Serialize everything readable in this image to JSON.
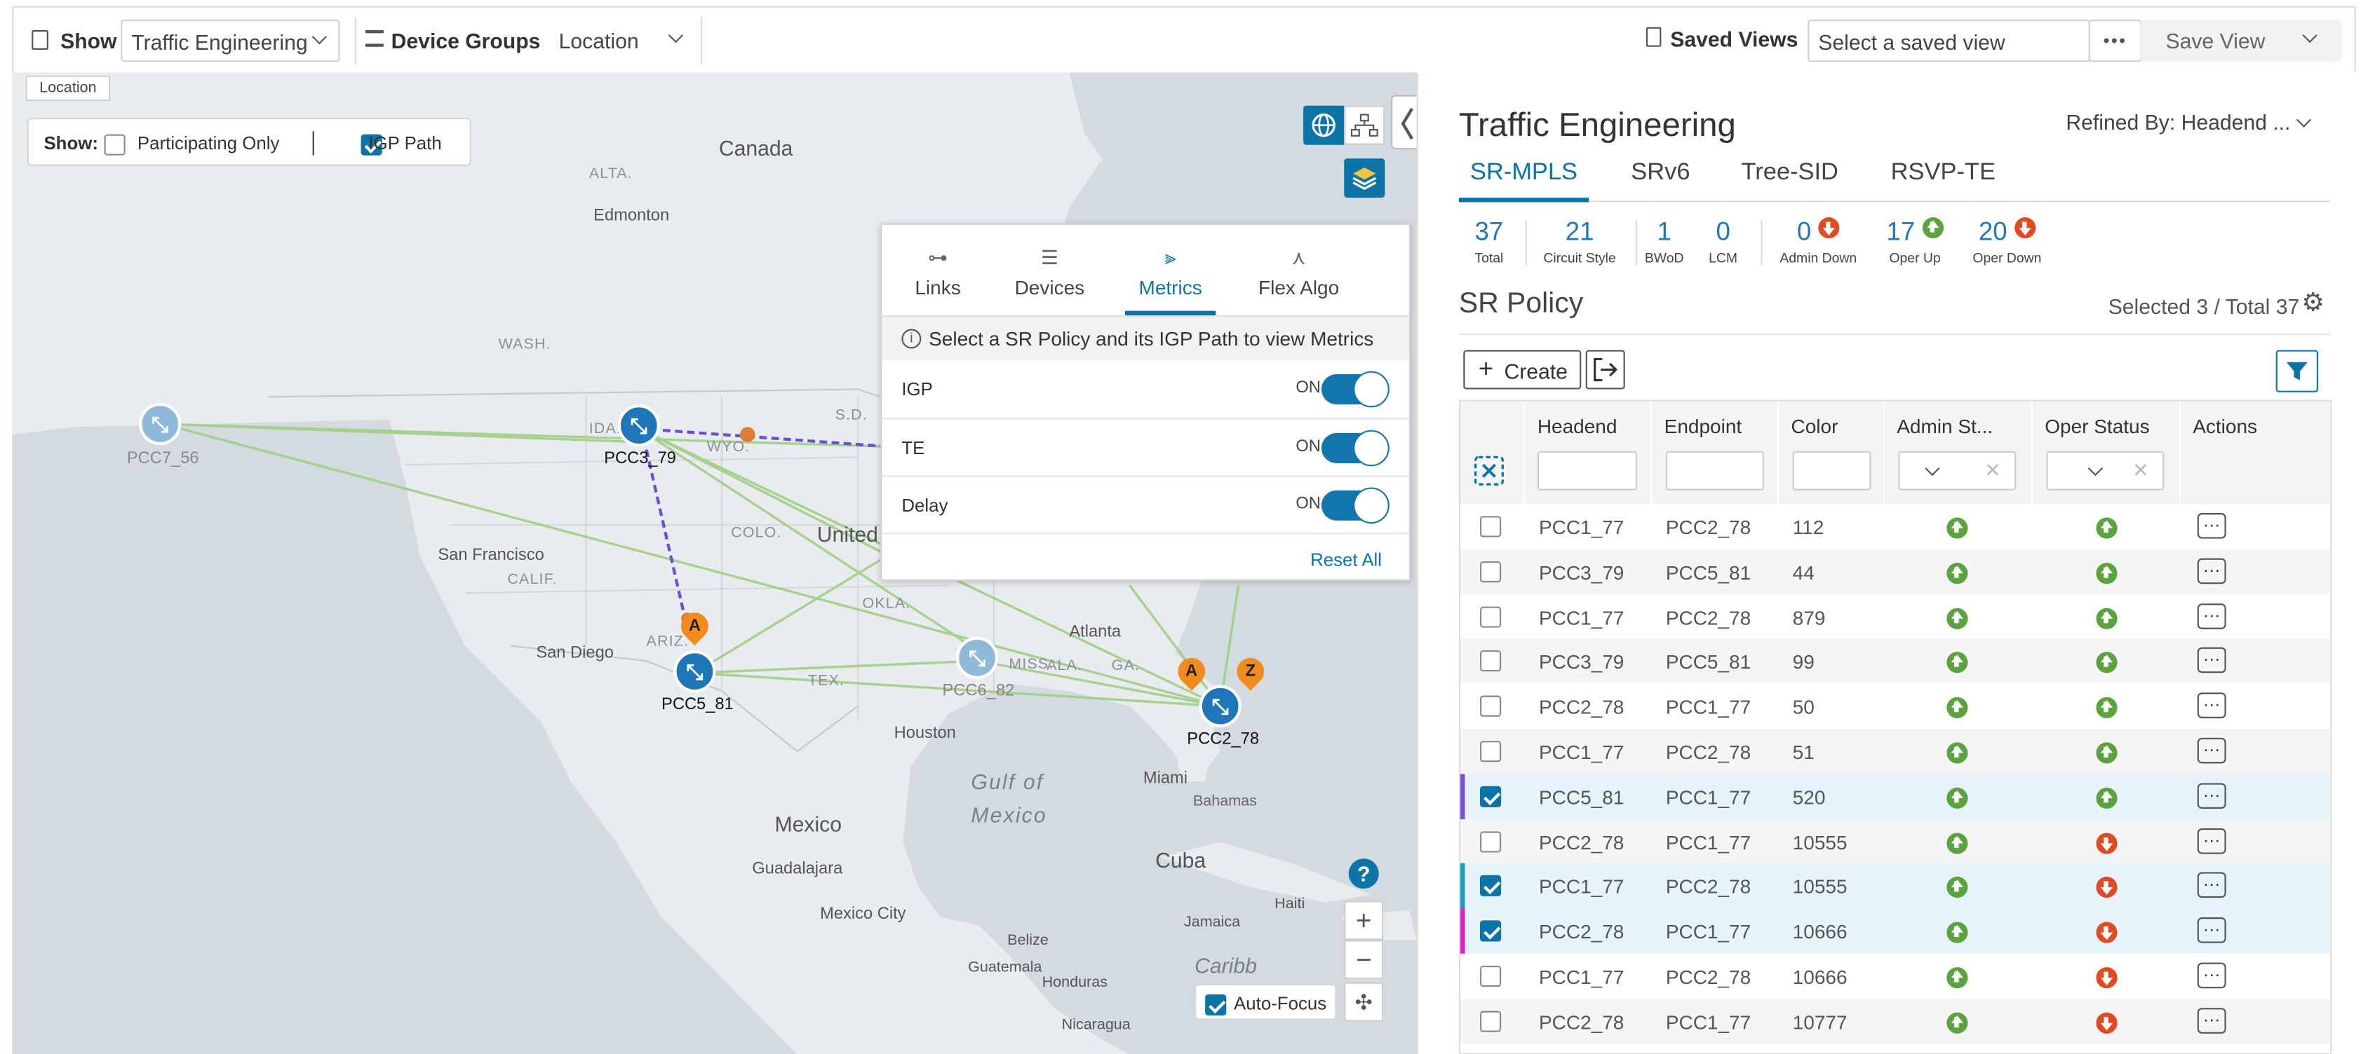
{
  "topbar": {
    "show_label": "Show",
    "show_value": "Traffic Engineering",
    "device_groups_label": "Device Groups",
    "location_value": "Location",
    "saved_views_label": "Saved Views",
    "saved_view_placeholder": "Select a saved view",
    "more_label": "•••",
    "save_view_label": "Save View"
  },
  "map": {
    "location_tag": "Location",
    "show_label": "Show:",
    "participating_only_label": "Participating Only",
    "igp_path_label": "IGP Path",
    "auto_focus_label": "Auto-Focus",
    "help_label": "?",
    "geo_labels": {
      "canada": "Canada",
      "alta": "ALTA.",
      "edmonton": "Edmonton",
      "wash": "WASH.",
      "ida": "IDA.",
      "wyo": "WYO.",
      "sd": "S.D.",
      "colo": "COLO.",
      "united": "United",
      "san_francisco": "San Francisco",
      "calif": "CALIF.",
      "okla": "OKLA.",
      "ariz": "ARIZ.",
      "san_diego": "San Diego",
      "atlanta": "Atlanta",
      "tex": "TEX.",
      "miss": "MISS.",
      "ala": "ALA.",
      "ga": "GA.",
      "houston": "Houston",
      "miami": "Miami",
      "bahamas": "Bahamas",
      "gulf": "Gulf of",
      "mexico_gulf": "Mexico",
      "mexico": "Mexico",
      "guadalajara": "Guadalajara",
      "mexico_city": "Mexico City",
      "cuba": "Cuba",
      "haiti": "Haiti",
      "jamaica": "Jamaica",
      "belize": "Belize",
      "guatemala": "Guatemala",
      "honduras": "Honduras",
      "caribbean": "Caribb",
      "nicaragua": "Nicaragua"
    },
    "nodes": {
      "pcc7": "PCC7_56",
      "pcc3": "PCC3_79",
      "pcc5": "PCC5_81",
      "pcc6": "PCC6_82",
      "pcc2": "PCC2_78"
    },
    "pins": {
      "a1": "A",
      "a2": "A",
      "z": "Z"
    }
  },
  "metrics_panel": {
    "tabs": [
      {
        "label": "Links",
        "icon": "links-icon"
      },
      {
        "label": "Devices",
        "icon": "devices-icon"
      },
      {
        "label": "Metrics",
        "icon": "metrics-icon"
      },
      {
        "label": "Flex Algo",
        "icon": "flex-algo-icon"
      }
    ],
    "active_tab": "Metrics",
    "info": "Select a SR Policy and its IGP Path to view Metrics",
    "toggles": [
      {
        "label": "IGP",
        "state": "ON"
      },
      {
        "label": "TE",
        "state": "ON"
      },
      {
        "label": "Delay",
        "state": "ON"
      }
    ],
    "reset_label": "Reset All"
  },
  "right": {
    "title": "Traffic Engineering",
    "refined_by": "Refined By: Headend ...",
    "tabs": [
      "SR-MPLS",
      "SRv6",
      "Tree-SID",
      "RSVP-TE"
    ],
    "active_tab": "SR-MPLS",
    "stats": [
      {
        "value": "37",
        "label": "Total"
      },
      {
        "value": "21",
        "label": "Circuit Style"
      },
      {
        "value": "1",
        "label": "BWoD"
      },
      {
        "value": "0",
        "label": "LCM"
      },
      {
        "value": "0",
        "label": "Admin Down"
      },
      {
        "value": "17",
        "label": "Oper Up"
      },
      {
        "value": "20",
        "label": "Oper Down"
      }
    ],
    "section_title": "SR Policy",
    "selected_label": "Selected 3 / Total 37",
    "create_label": "Create",
    "columns": [
      "Headend",
      "Endpoint",
      "Color",
      "Admin St...",
      "Oper Status",
      "Actions"
    ],
    "rows": [
      {
        "headend": "PCC1_77",
        "endpoint": "PCC2_78",
        "color": "112",
        "admin": "up",
        "oper": "up",
        "checked": false
      },
      {
        "headend": "PCC3_79",
        "endpoint": "PCC5_81",
        "color": "44",
        "admin": "up",
        "oper": "up",
        "checked": false
      },
      {
        "headend": "PCC1_77",
        "endpoint": "PCC2_78",
        "color": "879",
        "admin": "up",
        "oper": "up",
        "checked": false
      },
      {
        "headend": "PCC3_79",
        "endpoint": "PCC5_81",
        "color": "99",
        "admin": "up",
        "oper": "up",
        "checked": false
      },
      {
        "headend": "PCC2_78",
        "endpoint": "PCC1_77",
        "color": "50",
        "admin": "up",
        "oper": "up",
        "checked": false
      },
      {
        "headend": "PCC1_77",
        "endpoint": "PCC2_78",
        "color": "51",
        "admin": "up",
        "oper": "up",
        "checked": false
      },
      {
        "headend": "PCC5_81",
        "endpoint": "PCC1_77",
        "color": "520",
        "admin": "up",
        "oper": "up",
        "checked": true,
        "marker": "#7b4fd6"
      },
      {
        "headend": "PCC2_78",
        "endpoint": "PCC1_77",
        "color": "10555",
        "admin": "up",
        "oper": "down",
        "checked": false
      },
      {
        "headend": "PCC1_77",
        "endpoint": "PCC2_78",
        "color": "10555",
        "admin": "up",
        "oper": "down",
        "checked": true,
        "marker": "#1aa0c8"
      },
      {
        "headend": "PCC2_78",
        "endpoint": "PCC1_77",
        "color": "10666",
        "admin": "up",
        "oper": "down",
        "checked": true,
        "marker": "#d623c8"
      },
      {
        "headend": "PCC1_77",
        "endpoint": "PCC2_78",
        "color": "10666",
        "admin": "up",
        "oper": "down",
        "checked": false
      },
      {
        "headend": "PCC2_78",
        "endpoint": "PCC1_77",
        "color": "10777",
        "admin": "up",
        "oper": "down",
        "checked": false
      }
    ]
  },
  "colors": {
    "accent": "#0d74a8",
    "up": "#5aa33e",
    "down": "#e24a26"
  }
}
